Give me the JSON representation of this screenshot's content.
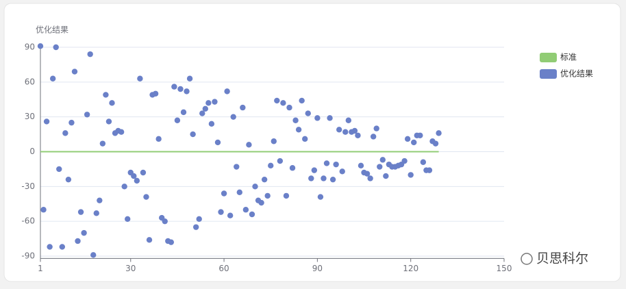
{
  "chart_data": {
    "type": "scatter",
    "y_label": "优化结果",
    "xlim": [
      1,
      150
    ],
    "xticks": [
      1,
      30,
      60,
      90,
      120,
      150
    ],
    "ylim": [
      -92,
      92
    ],
    "yticks": [
      -90,
      -60,
      -30,
      0,
      30,
      60,
      90
    ],
    "grid": true,
    "legend": "right",
    "series": [
      {
        "name": "标准",
        "type": "line",
        "color": "#91cc75",
        "x": [
          1,
          129
        ],
        "values": [
          0,
          0
        ]
      },
      {
        "name": "优化结果",
        "type": "scatter",
        "color": "#6a80c8",
        "x": [
          1,
          2,
          3,
          4,
          5,
          6,
          7,
          8,
          9,
          10,
          11,
          12,
          13,
          14,
          15,
          16,
          17,
          18,
          19,
          20,
          21,
          22,
          23,
          24,
          25,
          26,
          27,
          28,
          29,
          30,
          31,
          32,
          33,
          34,
          35,
          36,
          37,
          38,
          39,
          40,
          41,
          42,
          43,
          44,
          45,
          46,
          47,
          48,
          49,
          50,
          51,
          52,
          53,
          54,
          55,
          56,
          57,
          58,
          59,
          60,
          61,
          62,
          63,
          64,
          65,
          66,
          67,
          68,
          69,
          70,
          71,
          72,
          73,
          74,
          75,
          76,
          77,
          78,
          79,
          80,
          81,
          82,
          83,
          84,
          85,
          86,
          87,
          88,
          89,
          90,
          91,
          92,
          93,
          94,
          95,
          96,
          97,
          98,
          99,
          100,
          101,
          102,
          103,
          104,
          105,
          106,
          107,
          108,
          109,
          110,
          111,
          112,
          113,
          114,
          115,
          116,
          117,
          118,
          119,
          120,
          121,
          122,
          123,
          124,
          125,
          126,
          127,
          128,
          129
        ],
        "values": [
          91,
          -50,
          26,
          -82,
          63,
          90,
          -15,
          -82,
          16,
          -24,
          25,
          69,
          -77,
          -52,
          -70,
          32,
          84,
          -89,
          -53,
          -42,
          7,
          49,
          26,
          42,
          16,
          18,
          17,
          -30,
          -58,
          -18,
          -21,
          -25,
          63,
          -18,
          -39,
          -76,
          49,
          50,
          11,
          -57,
          -60,
          -77,
          -78,
          56,
          27,
          54,
          34,
          52,
          63,
          15,
          -65,
          -58,
          33,
          37,
          42,
          24,
          43,
          8,
          -52,
          -36,
          52,
          -55,
          30,
          -13,
          -35,
          38,
          -50,
          6,
          -54,
          -30,
          -42,
          -44,
          -24,
          -38,
          -12,
          9,
          44,
          -8,
          42,
          -38,
          38,
          -14,
          27,
          19,
          44,
          11,
          33,
          -23,
          -16,
          29,
          -39,
          -23,
          -10,
          29,
          -24,
          -11,
          19,
          -17,
          17,
          27,
          17,
          18,
          14,
          -12,
          -18,
          -19,
          -23,
          13,
          20,
          -13,
          -7,
          -21,
          -11,
          -13,
          -13,
          -12,
          -11,
          -8,
          11,
          -20,
          8,
          14,
          14,
          -9,
          -16,
          -16,
          9,
          7,
          16
        ]
      }
    ]
  },
  "watermark": "贝思科尔"
}
